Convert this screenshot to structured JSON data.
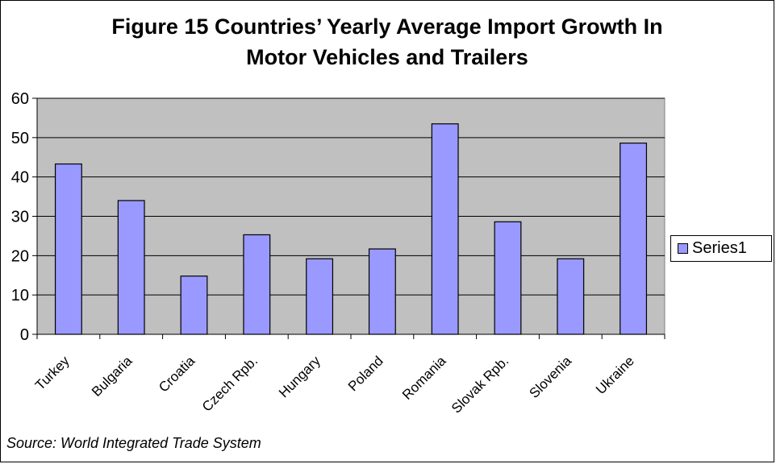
{
  "chart_data": {
    "type": "bar",
    "title": "Figure 15 Countries’ Yearly Average Import Growth In",
    "subtitle": "Motor Vehicles and Trailers",
    "categories": [
      "Turkey",
      "Bulgaria",
      "Croatia",
      "Czech Rpb.",
      "Hungary",
      "Poland",
      "Romania",
      "Slovak Rpb.",
      "Slovenia",
      "Ukraine"
    ],
    "series": [
      {
        "name": "Series1",
        "values": [
          43.3,
          34.0,
          14.8,
          25.3,
          19.2,
          21.7,
          53.5,
          28.6,
          19.2,
          48.6
        ]
      }
    ],
    "ylim": [
      0,
      60
    ],
    "yticks": [
      "0",
      "10",
      "20",
      "30",
      "40",
      "50",
      "60"
    ],
    "grid": "horizontal",
    "legend_position": "right",
    "source": "Source: World Integrated Trade System",
    "colors": {
      "bar": "#9999ff",
      "plot_bg": "#c0c0c0"
    }
  }
}
